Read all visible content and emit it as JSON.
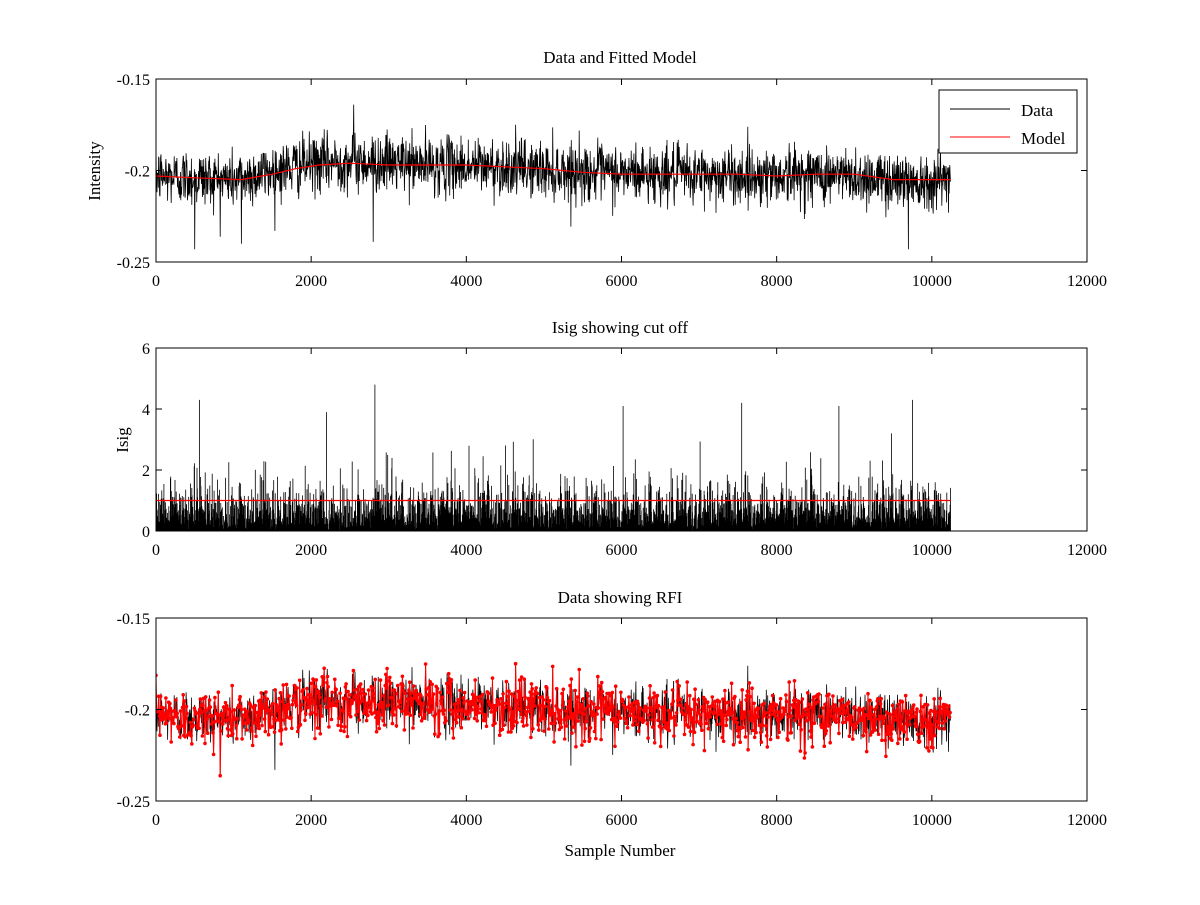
{
  "chart_data": [
    {
      "type": "line",
      "title": "Data and Fitted Model",
      "xlabel": "",
      "ylabel": "Intensity",
      "xlim": [
        0,
        12000
      ],
      "ylim": [
        -0.25,
        -0.15
      ],
      "xticks": [
        "0",
        "2000",
        "4000",
        "6000",
        "8000",
        "10000",
        "12000"
      ],
      "yticks": [
        "-0.25",
        "-0.2",
        "-0.15"
      ],
      "grid": false,
      "legend": {
        "placement": "top-right",
        "entries": [
          "Data",
          "Model"
        ]
      },
      "series": [
        {
          "name": "Data",
          "color": "#000000",
          "samples": 10240,
          "center": [
            [
              0,
              -0.203
            ],
            [
              1000,
              -0.205
            ],
            [
              1900,
              -0.197
            ],
            [
              2500,
              -0.195
            ],
            [
              3500,
              -0.197
            ],
            [
              4500,
              -0.198
            ],
            [
              5500,
              -0.201
            ],
            [
              6500,
              -0.202
            ],
            [
              7500,
              -0.203
            ],
            [
              8500,
              -0.202
            ],
            [
              9500,
              -0.205
            ],
            [
              10240,
              -0.205
            ]
          ],
          "spread": 0.013,
          "peaks": [
            [
              500,
              -0.243
            ],
            [
              1100,
              -0.24
            ],
            [
              2550,
              -0.164
            ],
            [
              2800,
              -0.239
            ],
            [
              9700,
              -0.243
            ]
          ]
        },
        {
          "name": "Model",
          "color": "#ff0000",
          "points": [
            [
              0,
              -0.203
            ],
            [
              500,
              -0.204
            ],
            [
              1100,
              -0.205
            ],
            [
              1500,
              -0.202
            ],
            [
              1800,
              -0.199
            ],
            [
              2100,
              -0.197
            ],
            [
              2500,
              -0.196
            ],
            [
              3000,
              -0.197
            ],
            [
              3500,
              -0.197
            ],
            [
              4000,
              -0.197
            ],
            [
              4500,
              -0.198
            ],
            [
              5000,
              -0.199
            ],
            [
              5500,
              -0.201
            ],
            [
              6000,
              -0.202
            ],
            [
              6500,
              -0.202
            ],
            [
              7000,
              -0.202
            ],
            [
              7500,
              -0.202
            ],
            [
              8000,
              -0.203
            ],
            [
              8500,
              -0.202
            ],
            [
              9000,
              -0.202
            ],
            [
              9500,
              -0.205
            ],
            [
              10240,
              -0.205
            ]
          ]
        }
      ]
    },
    {
      "type": "line",
      "title": "Isig showing cut off",
      "xlabel": "",
      "ylabel": "Isig",
      "xlim": [
        0,
        12000
      ],
      "ylim": [
        0,
        6
      ],
      "xticks": [
        "0",
        "2000",
        "4000",
        "6000",
        "8000",
        "10000",
        "12000"
      ],
      "yticks": [
        "0",
        "2",
        "4",
        "6"
      ],
      "grid": false,
      "series": [
        {
          "color": "#000000",
          "samples": 10240,
          "typical_max": 2.3,
          "peaks": [
            [
              560,
              4.3
            ],
            [
              2200,
              3.9
            ],
            [
              2820,
              4.8
            ],
            [
              6020,
              4.1
            ],
            [
              7550,
              4.2
            ],
            [
              8800,
              4.1
            ],
            [
              9750,
              4.3
            ]
          ]
        },
        {
          "color": "#ff0000",
          "points": [
            [
              0,
              1.0
            ],
            [
              10240,
              1.0
            ]
          ]
        }
      ]
    },
    {
      "type": "line",
      "title": "Data showing RFI",
      "xlabel": "Sample Number",
      "ylabel": "",
      "xlim": [
        0,
        12000
      ],
      "ylim": [
        -0.25,
        -0.15
      ],
      "xticks": [
        "0",
        "2000",
        "4000",
        "6000",
        "8000",
        "10000",
        "12000"
      ],
      "yticks": [
        "-0.25",
        "-0.2",
        "-0.15"
      ],
      "grid": false,
      "series": [
        {
          "color": "#000000",
          "samples": 10240,
          "center": [
            [
              0,
              -0.203
            ],
            [
              1000,
              -0.205
            ],
            [
              1900,
              -0.197
            ],
            [
              2500,
              -0.195
            ],
            [
              3500,
              -0.197
            ],
            [
              4500,
              -0.198
            ],
            [
              5500,
              -0.201
            ],
            [
              6500,
              -0.202
            ],
            [
              7500,
              -0.203
            ],
            [
              8500,
              -0.202
            ],
            [
              9500,
              -0.205
            ],
            [
              10240,
              -0.205
            ]
          ],
          "spread": 0.013
        },
        {
          "color": "#ff0000",
          "marker": "dot",
          "samples": 10240
        }
      ]
    }
  ]
}
